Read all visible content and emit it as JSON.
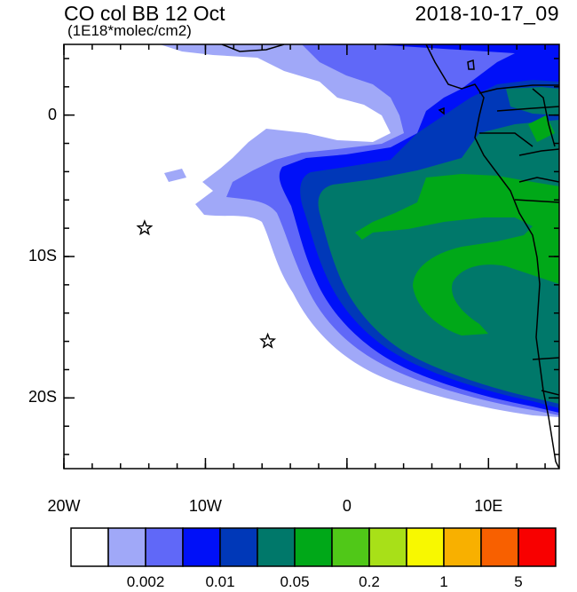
{
  "title": {
    "left": "CO col BB 12 Oct",
    "sub": "(1E18*molec/cm2)",
    "right": "2018-10-17_09"
  },
  "axes": {
    "x_ticks": [
      {
        "value": -20,
        "label": "20W"
      },
      {
        "value": -10,
        "label": "10W"
      },
      {
        "value": 0,
        "label": "0"
      },
      {
        "value": 10,
        "label": "10E"
      }
    ],
    "y_ticks": [
      {
        "value": 0,
        "label": "0"
      },
      {
        "value": -10,
        "label": "10S"
      },
      {
        "value": -20,
        "label": "20S"
      }
    ],
    "lon_range": [
      -20,
      15
    ],
    "lat_range": [
      -25,
      5
    ]
  },
  "markers": [
    {
      "name": "star-marker-1",
      "lon": -14.3,
      "lat": -8.0
    },
    {
      "name": "star-marker-2",
      "lon": -5.6,
      "lat": -16.0
    }
  ],
  "colorbar": {
    "colors": [
      "#ffffff",
      "#a0a8f8",
      "#6068f8",
      "#0010f8",
      "#0038b8",
      "#00786a",
      "#00a818",
      "#50c818",
      "#a8e018",
      "#f8f800",
      "#f8b000",
      "#f86000",
      "#f80000"
    ],
    "labels": [
      {
        "after_index": 1,
        "text": "0.002"
      },
      {
        "after_index": 3,
        "text": "0.01"
      },
      {
        "after_index": 5,
        "text": "0.05"
      },
      {
        "after_index": 7,
        "text": "0.2"
      },
      {
        "after_index": 9,
        "text": "1"
      },
      {
        "after_index": 11,
        "text": "5"
      }
    ]
  }
}
